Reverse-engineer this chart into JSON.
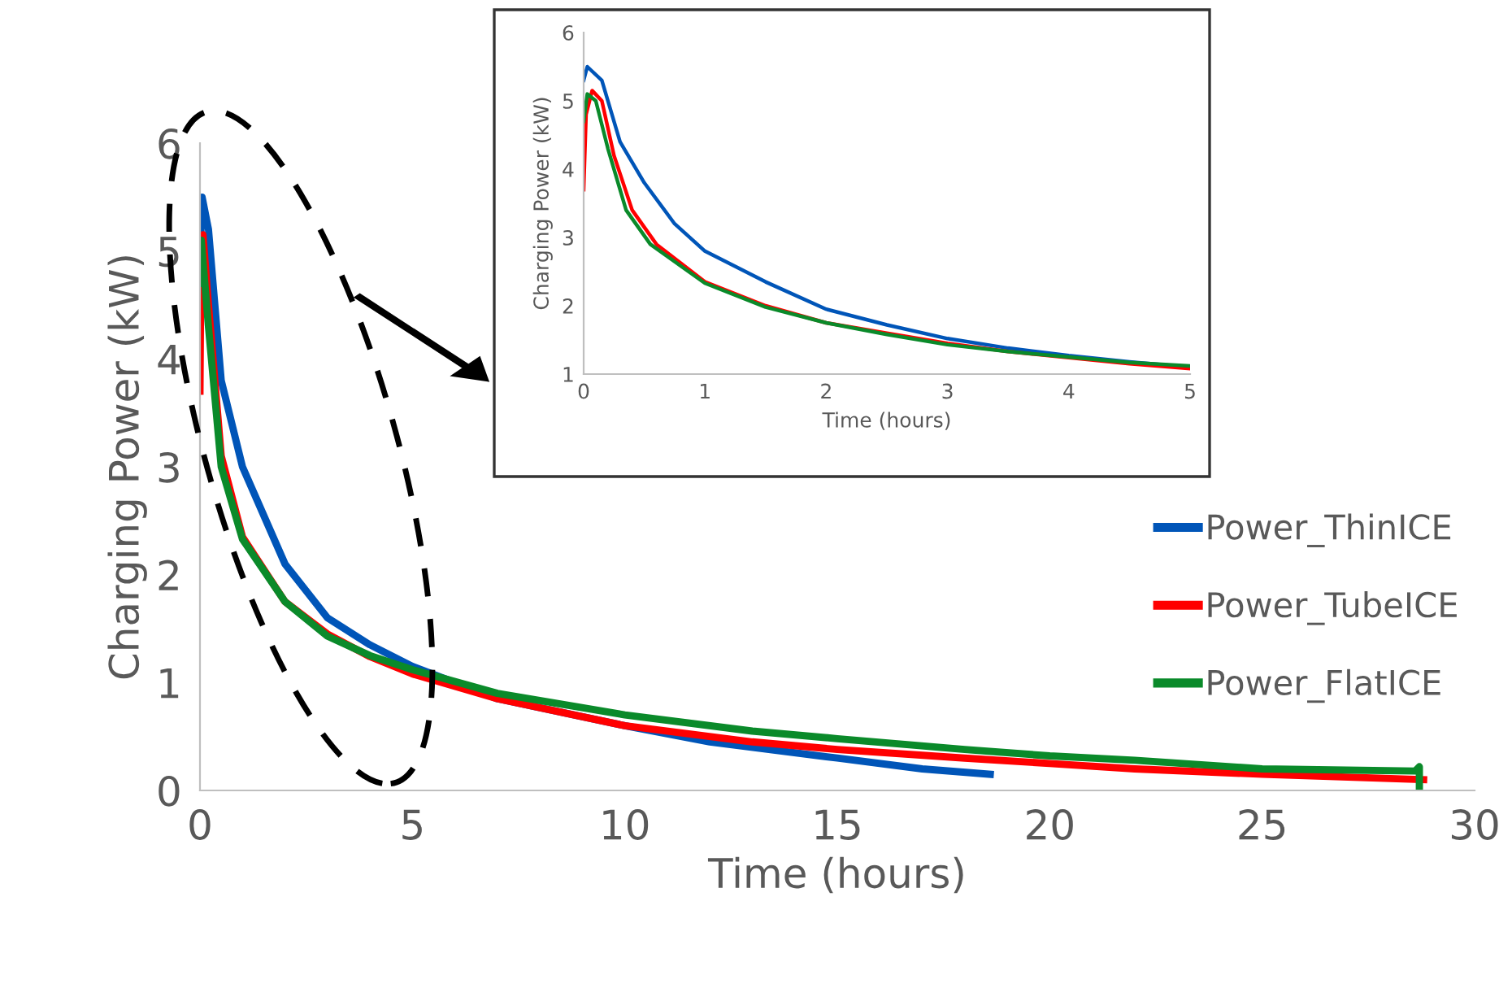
{
  "chart_data": [
    {
      "type": "line",
      "xlabel": "Time (hours)",
      "ylabel": "Charging Power (kW)",
      "xlim": [
        0,
        30
      ],
      "ylim": [
        0,
        6
      ],
      "xticks": [
        0,
        5,
        10,
        15,
        20,
        25,
        30
      ],
      "yticks": [
        0,
        1,
        2,
        3,
        4,
        5,
        6
      ],
      "grid": false,
      "legend": "right",
      "marker": "none",
      "line_style": "solid",
      "series": [
        {
          "name": "Power_ThinICE",
          "color": "#0055b8",
          "x": [
            0,
            0.05,
            0.2,
            0.5,
            1,
            2,
            3,
            4,
            5,
            7,
            10,
            12,
            15,
            17,
            18.6
          ],
          "values": [
            4.9,
            5.5,
            5.2,
            3.8,
            3.0,
            2.1,
            1.6,
            1.35,
            1.15,
            0.85,
            0.6,
            0.45,
            0.3,
            0.2,
            0.15
          ]
        },
        {
          "name": "Power_TubeICE",
          "color": "#ff0000",
          "x": [
            0,
            0.02,
            0.07,
            0.2,
            0.5,
            1,
            2,
            3,
            4,
            5,
            7,
            10,
            13,
            15,
            18,
            20,
            22,
            25,
            28.8
          ],
          "values": [
            3.7,
            4.8,
            5.15,
            4.5,
            3.1,
            2.35,
            1.75,
            1.45,
            1.24,
            1.08,
            0.85,
            0.6,
            0.45,
            0.38,
            0.3,
            0.25,
            0.2,
            0.15,
            0.1
          ]
        },
        {
          "name": "Power_FlatICE",
          "color": "#0a8a2a",
          "x": [
            0,
            0.03,
            0.2,
            0.5,
            1,
            2,
            3,
            4,
            5,
            7,
            10,
            13,
            15,
            18,
            20,
            22,
            25,
            28.6,
            28.7,
            28.7
          ],
          "values": [
            4.7,
            5.1,
            4.3,
            3.0,
            2.33,
            1.75,
            1.43,
            1.25,
            1.12,
            0.9,
            0.7,
            0.55,
            0.48,
            0.38,
            0.32,
            0.28,
            0.2,
            0.18,
            0.22,
            0
          ]
        }
      ]
    },
    {
      "type": "line",
      "xlabel": "Time (hours)",
      "ylabel": "Charging Power (kW)",
      "xlim": [
        0,
        5
      ],
      "ylim": [
        1,
        6
      ],
      "xticks": [
        0,
        1,
        2,
        3,
        4,
        5
      ],
      "yticks": [
        1,
        2,
        3,
        4,
        5,
        6
      ],
      "grid": false,
      "legend": false,
      "marker": "none",
      "line_style": "solid",
      "series": [
        {
          "color": "#0055b8",
          "x": [
            0,
            0.03,
            0.15,
            0.3,
            0.5,
            0.75,
            1,
            1.5,
            2,
            2.5,
            3,
            3.5,
            4,
            4.5,
            5
          ],
          "values": [
            5.3,
            5.5,
            5.3,
            4.4,
            3.8,
            3.2,
            2.8,
            2.35,
            1.95,
            1.72,
            1.52,
            1.38,
            1.27,
            1.18,
            1.1
          ]
        },
        {
          "color": "#ff0000",
          "x": [
            0,
            0.02,
            0.07,
            0.15,
            0.25,
            0.4,
            0.6,
            1,
            1.5,
            2,
            2.5,
            3,
            3.5,
            4,
            4.5,
            5
          ],
          "values": [
            3.7,
            4.8,
            5.15,
            5.0,
            4.2,
            3.4,
            2.9,
            2.35,
            2.0,
            1.75,
            1.6,
            1.45,
            1.33,
            1.24,
            1.15,
            1.08
          ]
        },
        {
          "color": "#0a8a2a",
          "x": [
            0,
            0.03,
            0.1,
            0.2,
            0.35,
            0.55,
            1,
            1.5,
            2,
            2.5,
            3,
            3.5,
            4,
            4.5,
            5
          ],
          "values": [
            4.7,
            5.1,
            5.0,
            4.3,
            3.4,
            2.9,
            2.33,
            1.98,
            1.75,
            1.58,
            1.43,
            1.33,
            1.25,
            1.17,
            1.12
          ]
        }
      ]
    }
  ]
}
